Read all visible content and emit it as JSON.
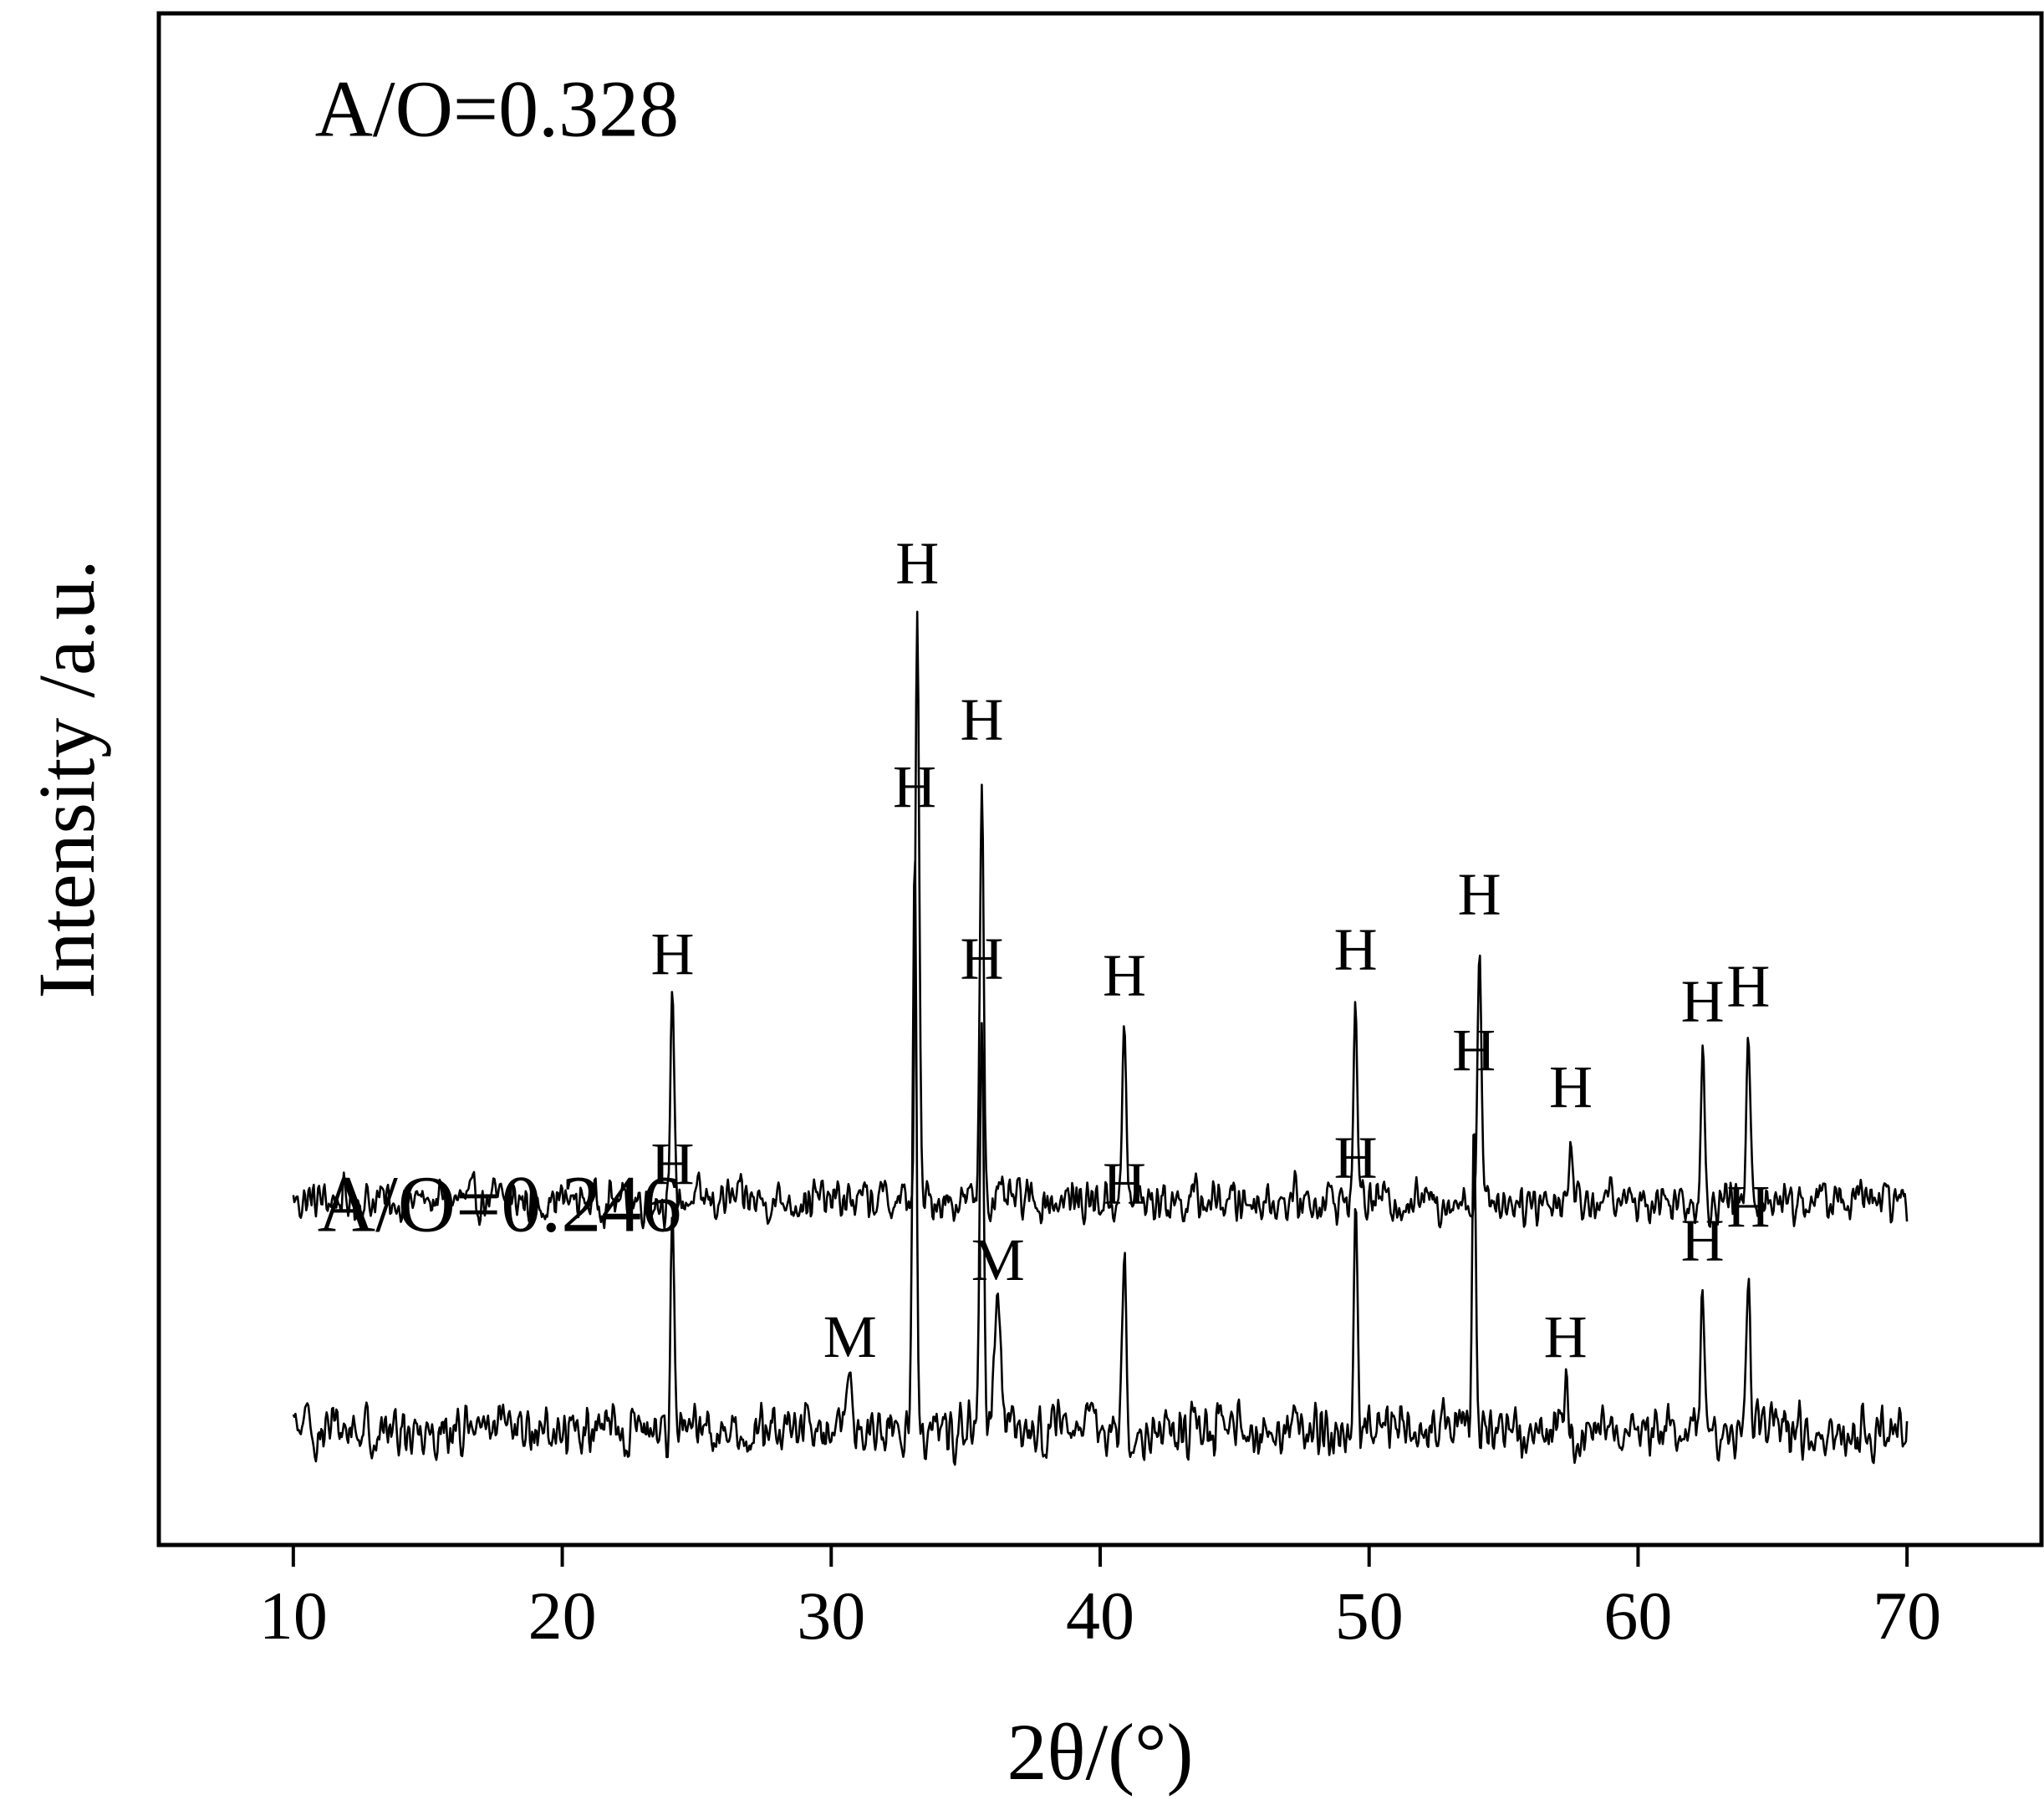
{
  "chart_data": {
    "type": "line",
    "xlabel": "2θ/(°)",
    "ylabel": "Intensity /a.u.",
    "xlim": [
      5,
      75
    ],
    "xticks": [
      10,
      20,
      30,
      40,
      50,
      60,
      70
    ],
    "ylim": [
      0,
      1
    ],
    "grid": false,
    "y_tick_labels_shown": false,
    "series": [
      {
        "name": "A/O=0.328",
        "baseline": 0.225,
        "noise_amplitude": 0.009,
        "peaks": [
          {
            "x": 24.1,
            "height": 0.125,
            "label": "H"
          },
          {
            "x": 33.2,
            "height": 0.38,
            "label": "H"
          },
          {
            "x": 35.6,
            "height": 0.278,
            "label": "H"
          },
          {
            "x": 40.9,
            "height": 0.111,
            "label": "H"
          },
          {
            "x": 49.5,
            "height": 0.128,
            "label": "H"
          },
          {
            "x": 54.1,
            "height": 0.164,
            "label": "H"
          },
          {
            "x": 57.5,
            "height": 0.038,
            "label": "H"
          },
          {
            "x": 62.4,
            "height": 0.094,
            "label": "H"
          },
          {
            "x": 64.1,
            "height": 0.104,
            "label": "H"
          }
        ]
      },
      {
        "name": "A/O=0.246",
        "baseline": 0.075,
        "noise_amplitude": 0.011,
        "peaks": [
          {
            "x": 24.1,
            "height": 0.138,
            "label": "H"
          },
          {
            "x": 30.7,
            "height": 0.025,
            "label": "M"
          },
          {
            "x": 33.1,
            "height": 0.384,
            "label": "H"
          },
          {
            "x": 35.6,
            "height": 0.272,
            "label": "H"
          },
          {
            "x": 36.2,
            "height": 0.075,
            "label": "M"
          },
          {
            "x": 40.9,
            "height": 0.125,
            "label": "H"
          },
          {
            "x": 49.5,
            "height": 0.142,
            "label": "H"
          },
          {
            "x": 53.9,
            "height": 0.212,
            "label": "H"
          },
          {
            "x": 57.3,
            "height": 0.025,
            "label": "H"
          },
          {
            "x": 62.4,
            "height": 0.088,
            "label": "H"
          },
          {
            "x": 64.1,
            "height": 0.11,
            "label": "H"
          }
        ]
      }
    ]
  }
}
